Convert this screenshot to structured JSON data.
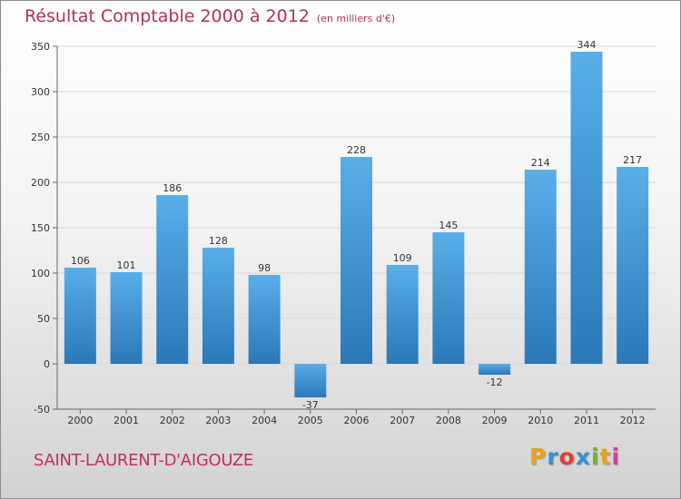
{
  "chart_data": {
    "type": "bar",
    "title": "Résultat Comptable 2000 à 2012",
    "subtitle": "(en milliers d'€)",
    "categories": [
      "2000",
      "2001",
      "2002",
      "2003",
      "2004",
      "2005",
      "2006",
      "2007",
      "2008",
      "2009",
      "2010",
      "2011",
      "2012"
    ],
    "values": [
      106,
      101,
      186,
      128,
      98,
      -37,
      228,
      109,
      145,
      -12,
      214,
      344,
      217
    ],
    "value_labels": [
      "106",
      "101",
      "186",
      "128",
      "98",
      "-37",
      "228",
      "109",
      "145",
      "-12",
      "214",
      "344",
      "217"
    ],
    "yticks": [
      -50,
      0,
      50,
      100,
      150,
      200,
      250,
      300,
      350
    ],
    "ylim": [
      -50,
      350
    ],
    "xlabel": "",
    "ylabel": "",
    "grid": true
  },
  "footer": {
    "town": "SAINT-LAURENT-D'AIGOUZE",
    "logo_letters": [
      "P",
      "r",
      "o",
      "x",
      "i",
      "t",
      "i"
    ],
    "logo_colors": [
      "#e8a020",
      "#3a8fd0",
      "#e83c30",
      "#3a8fd0",
      "#70b030",
      "#e8a020",
      "#d040a0"
    ]
  },
  "colors": {
    "bar_top": "#5aaee8",
    "bar_bottom": "#2a78b8",
    "title": "#b03060"
  }
}
